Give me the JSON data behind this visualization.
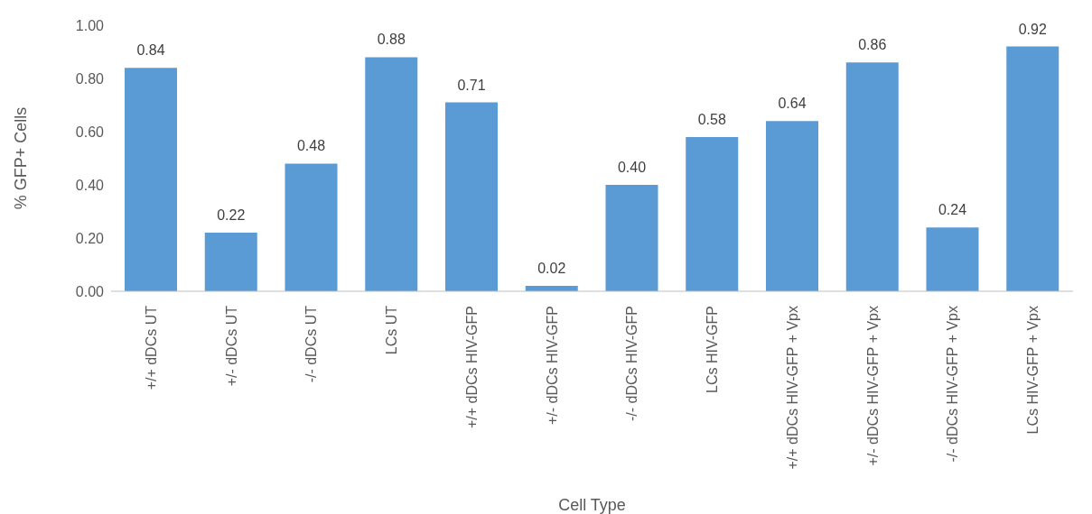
{
  "chart_data": {
    "type": "bar",
    "xlabel": "Cell Type",
    "ylabel": "% GFP+ Cells",
    "categories": [
      "+/+ dDCs UT",
      "+/- dDCs UT",
      "-/- dDCs UT",
      "LCs UT",
      "+/+ dDCs HIV-GFP",
      "+/- dDCs HIV-GFP",
      "-/- dDCs HIV-GFP",
      "LCs HIV-GFP",
      "+/+ dDCs HIV-GFP + Vpx",
      "+/- dDCs HIV-GFP + Vpx",
      "-/- dDCs HIV-GFP + Vpx",
      "LCs HIV-GFP + Vpx"
    ],
    "values": [
      0.84,
      0.22,
      0.48,
      0.88,
      0.71,
      0.02,
      0.4,
      0.58,
      0.64,
      0.86,
      0.24,
      0.92
    ],
    "value_labels": [
      "0.84",
      "0.22",
      "0.48",
      "0.88",
      "0.71",
      "0.02",
      "0.40",
      "0.58",
      "0.64",
      "0.86",
      "0.24",
      "0.92"
    ],
    "color": "#5b9bd5",
    "ylim": [
      0,
      1
    ],
    "yticks": [
      {
        "value": 0,
        "label": "0.00"
      },
      {
        "value": 0.2,
        "label": "0.20"
      },
      {
        "value": 0.4,
        "label": "0.40"
      },
      {
        "value": 0.6,
        "label": "0.60"
      },
      {
        "value": 0.8,
        "label": "0.80"
      },
      {
        "value": 1,
        "label": "1.00"
      }
    ],
    "grid": false,
    "legend": false
  }
}
